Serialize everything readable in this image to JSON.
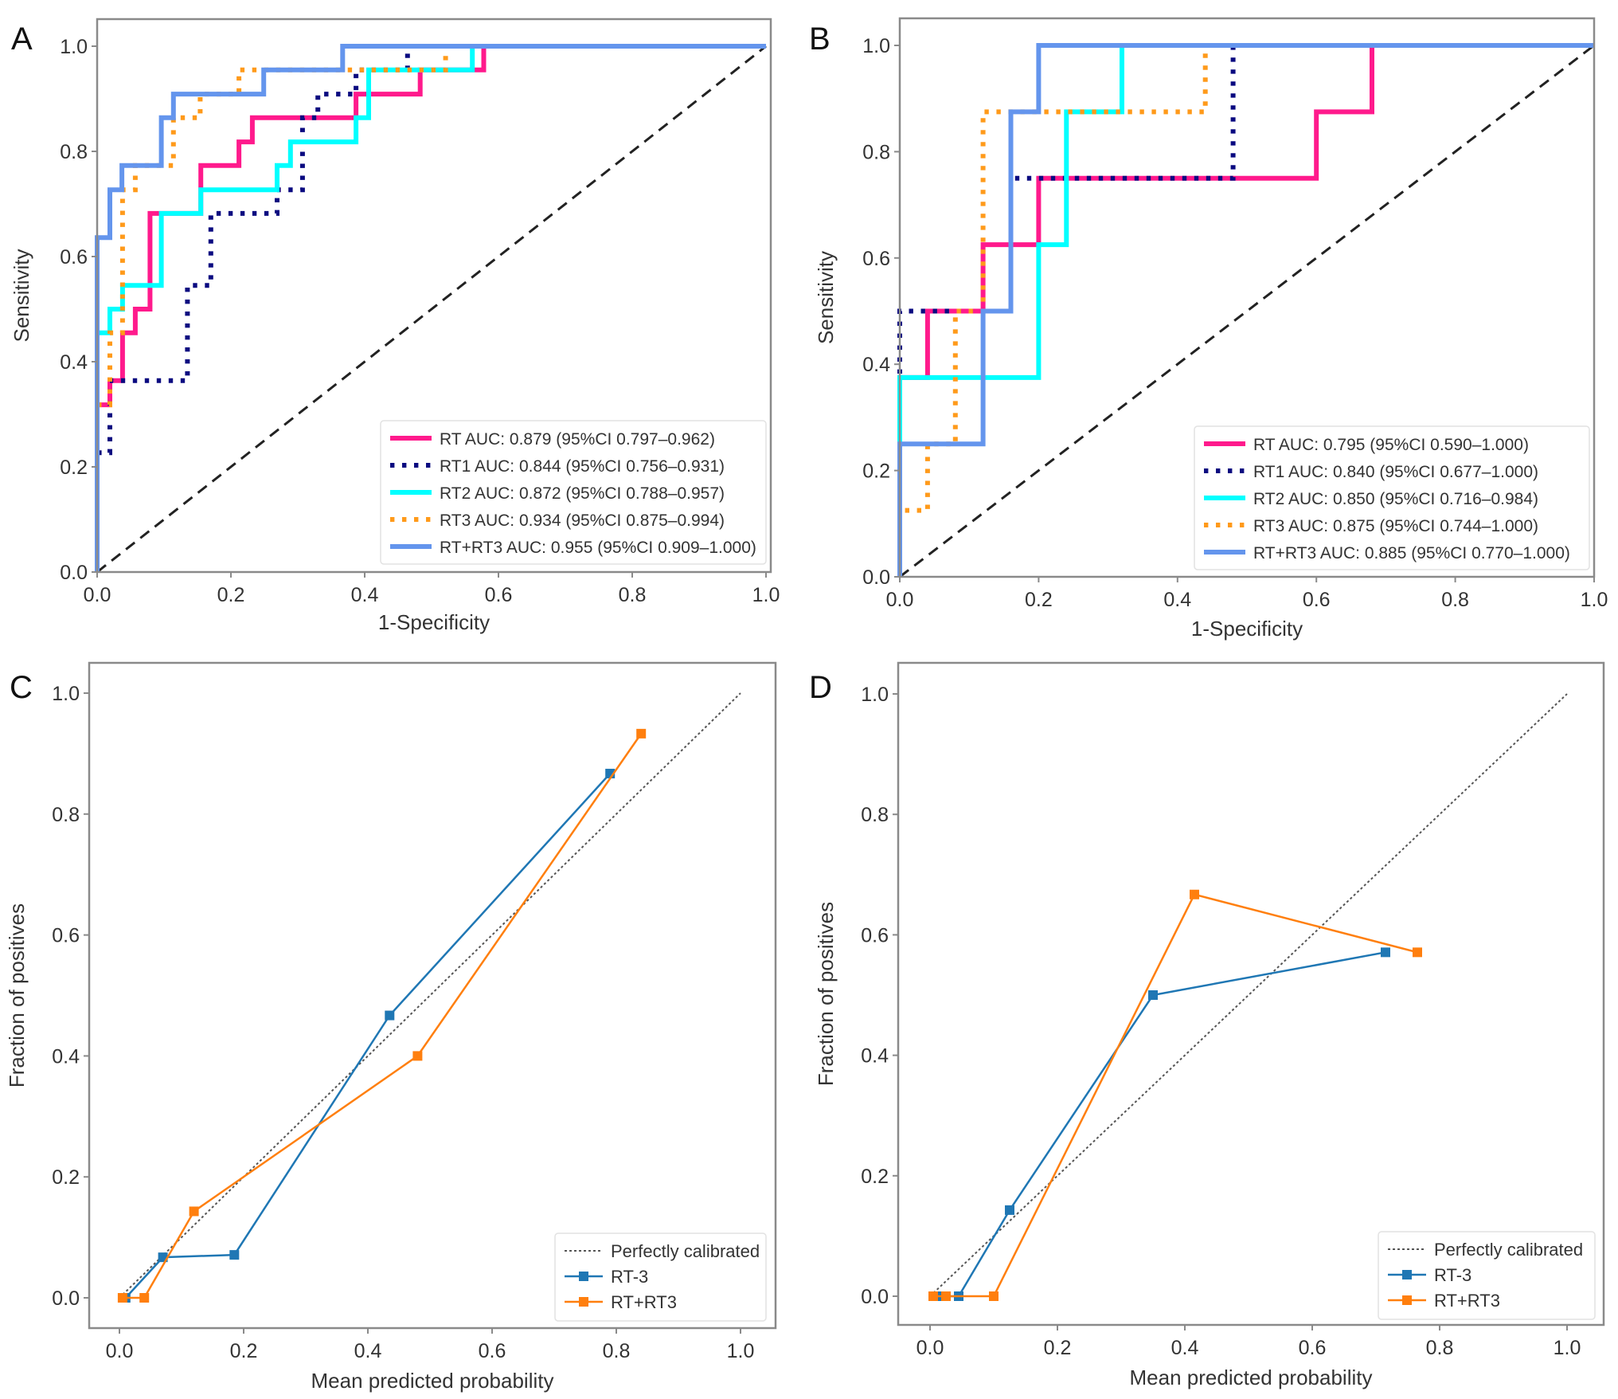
{
  "figure": {
    "panels": [
      "A",
      "B",
      "C",
      "D"
    ]
  },
  "chart_data": [
    {
      "panel": "A",
      "type": "line",
      "subtype": "roc-step",
      "title": "",
      "xlabel": "1-Specificity",
      "ylabel": "Sensitivity",
      "xlim": [
        0.0,
        1.0
      ],
      "ylim": [
        0.0,
        1.0
      ],
      "xticks": [
        "0.0",
        "0.2",
        "0.4",
        "0.6",
        "0.8",
        "1.0"
      ],
      "yticks": [
        "0.0",
        "0.2",
        "0.4",
        "0.6",
        "0.8",
        "1.0"
      ],
      "grid": false,
      "legend_position": "bottom-right",
      "reference_line": {
        "style": "dashed",
        "color": "#222222",
        "points": [
          [
            0,
            0
          ],
          [
            1,
            1
          ]
        ]
      },
      "series": [
        {
          "name": "RT",
          "legend": "RT AUC: 0.879 (95%CI 0.797–0.962)",
          "color": "#ff1a8c",
          "style": "solid",
          "points": [
            [
              0,
              0
            ],
            [
              0,
              0.318
            ],
            [
              0.019,
              0.318
            ],
            [
              0.019,
              0.364
            ],
            [
              0.038,
              0.364
            ],
            [
              0.038,
              0.455
            ],
            [
              0.057,
              0.455
            ],
            [
              0.057,
              0.5
            ],
            [
              0.079,
              0.5
            ],
            [
              0.079,
              0.682
            ],
            [
              0.096,
              0.682
            ],
            [
              0.155,
              0.682
            ],
            [
              0.155,
              0.773
            ],
            [
              0.212,
              0.773
            ],
            [
              0.212,
              0.818
            ],
            [
              0.232,
              0.818
            ],
            [
              0.232,
              0.864
            ],
            [
              0.387,
              0.864
            ],
            [
              0.387,
              0.909
            ],
            [
              0.483,
              0.909
            ],
            [
              0.483,
              0.955
            ],
            [
              0.578,
              0.955
            ],
            [
              0.578,
              1.0
            ],
            [
              1.0,
              1.0
            ]
          ]
        },
        {
          "name": "RT1",
          "legend": "RT1 AUC: 0.844 (95%CI 0.756–0.931)",
          "color": "#0a0a80",
          "style": "dotted",
          "points": [
            [
              0,
              0
            ],
            [
              0,
              0.227
            ],
            [
              0.019,
              0.227
            ],
            [
              0.019,
              0.364
            ],
            [
              0.135,
              0.364
            ],
            [
              0.135,
              0.545
            ],
            [
              0.17,
              0.545
            ],
            [
              0.17,
              0.682
            ],
            [
              0.269,
              0.682
            ],
            [
              0.269,
              0.727
            ],
            [
              0.307,
              0.727
            ],
            [
              0.307,
              0.864
            ],
            [
              0.33,
              0.864
            ],
            [
              0.33,
              0.909
            ],
            [
              0.387,
              0.909
            ],
            [
              0.387,
              0.955
            ],
            [
              0.464,
              0.955
            ],
            [
              0.464,
              1.0
            ],
            [
              1.0,
              1.0
            ]
          ]
        },
        {
          "name": "RT2",
          "legend": "RT2 AUC: 0.872 (95%CI 0.788–0.957)",
          "color": "#00ffff",
          "style": "solid",
          "points": [
            [
              0,
              0
            ],
            [
              0,
              0.455
            ],
            [
              0.019,
              0.455
            ],
            [
              0.019,
              0.5
            ],
            [
              0.038,
              0.5
            ],
            [
              0.038,
              0.545
            ],
            [
              0.096,
              0.545
            ],
            [
              0.096,
              0.682
            ],
            [
              0.155,
              0.682
            ],
            [
              0.155,
              0.727
            ],
            [
              0.269,
              0.727
            ],
            [
              0.269,
              0.773
            ],
            [
              0.289,
              0.773
            ],
            [
              0.289,
              0.818
            ],
            [
              0.387,
              0.818
            ],
            [
              0.387,
              0.864
            ],
            [
              0.406,
              0.864
            ],
            [
              0.406,
              0.955
            ],
            [
              0.561,
              0.955
            ],
            [
              0.561,
              1.0
            ],
            [
              1.0,
              1.0
            ]
          ]
        },
        {
          "name": "RT3",
          "legend": "RT3 AUC: 0.934 (95%CI 0.875–0.994)",
          "color": "#ff9a1a",
          "style": "dotted",
          "points": [
            [
              0,
              0
            ],
            [
              0,
              0.318
            ],
            [
              0.019,
              0.318
            ],
            [
              0.019,
              0.455
            ],
            [
              0.038,
              0.455
            ],
            [
              0.038,
              0.727
            ],
            [
              0.057,
              0.727
            ],
            [
              0.057,
              0.773
            ],
            [
              0.114,
              0.773
            ],
            [
              0.114,
              0.864
            ],
            [
              0.154,
              0.864
            ],
            [
              0.154,
              0.909
            ],
            [
              0.212,
              0.909
            ],
            [
              0.212,
              0.955
            ],
            [
              0.521,
              0.955
            ],
            [
              0.521,
              1.0
            ],
            [
              1.0,
              1.0
            ]
          ]
        },
        {
          "name": "RT+RT3",
          "legend": "RT+RT3 AUC: 0.955 (95%CI 0.909–1.000)",
          "color": "#6495ed",
          "style": "solid",
          "points": [
            [
              0,
              0
            ],
            [
              0,
              0.636
            ],
            [
              0.019,
              0.636
            ],
            [
              0.019,
              0.727
            ],
            [
              0.037,
              0.727
            ],
            [
              0.037,
              0.773
            ],
            [
              0.096,
              0.773
            ],
            [
              0.096,
              0.864
            ],
            [
              0.114,
              0.864
            ],
            [
              0.114,
              0.909
            ],
            [
              0.249,
              0.909
            ],
            [
              0.249,
              0.955
            ],
            [
              0.367,
              0.955
            ],
            [
              0.367,
              1.0
            ],
            [
              1.0,
              1.0
            ]
          ]
        }
      ]
    },
    {
      "panel": "B",
      "type": "line",
      "subtype": "roc-step",
      "title": "",
      "xlabel": "1-Specificity",
      "ylabel": "Sensitivity",
      "xlim": [
        0.0,
        1.0
      ],
      "ylim": [
        0.0,
        1.0
      ],
      "xticks": [
        "0.0",
        "0.2",
        "0.4",
        "0.6",
        "0.8",
        "1.0"
      ],
      "yticks": [
        "0.0",
        "0.2",
        "0.4",
        "0.6",
        "0.8",
        "1.0"
      ],
      "grid": false,
      "legend_position": "bottom-right",
      "reference_line": {
        "style": "dashed",
        "color": "#222222",
        "points": [
          [
            0,
            0
          ],
          [
            1,
            1
          ]
        ]
      },
      "series": [
        {
          "name": "RT",
          "legend": "RT AUC: 0.795 (95%CI 0.590–1.000)",
          "color": "#ff1a8c",
          "style": "solid",
          "points": [
            [
              0,
              0
            ],
            [
              0,
              0.375
            ],
            [
              0.04,
              0.375
            ],
            [
              0.04,
              0.5
            ],
            [
              0.12,
              0.5
            ],
            [
              0.12,
              0.625
            ],
            [
              0.2,
              0.625
            ],
            [
              0.2,
              0.75
            ],
            [
              0.6,
              0.75
            ],
            [
              0.6,
              0.875
            ],
            [
              0.68,
              0.875
            ],
            [
              0.68,
              1.0
            ],
            [
              1.0,
              1.0
            ]
          ]
        },
        {
          "name": "RT1",
          "legend": "RT1 AUC: 0.840 (95%CI 0.677–1.000)",
          "color": "#0a0a80",
          "style": "dotted",
          "points": [
            [
              0,
              0
            ],
            [
              0,
              0.5
            ],
            [
              0.16,
              0.5
            ],
            [
              0.16,
              0.75
            ],
            [
              0.48,
              0.75
            ],
            [
              0.48,
              1.0
            ],
            [
              1.0,
              1.0
            ]
          ]
        },
        {
          "name": "RT2",
          "legend": "RT2 AUC: 0.850 (95%CI 0.716–0.984)",
          "color": "#00ffff",
          "style": "solid",
          "points": [
            [
              0,
              0
            ],
            [
              0,
              0.375
            ],
            [
              0.2,
              0.375
            ],
            [
              0.2,
              0.625
            ],
            [
              0.24,
              0.625
            ],
            [
              0.24,
              0.875
            ],
            [
              0.32,
              0.875
            ],
            [
              0.32,
              1.0
            ],
            [
              1.0,
              1.0
            ]
          ]
        },
        {
          "name": "RT3",
          "legend": "RT3 AUC: 0.875 (95%CI 0.744–1.000)",
          "color": "#ff9a1a",
          "style": "dotted",
          "points": [
            [
              0,
              0
            ],
            [
              0,
              0.125
            ],
            [
              0.04,
              0.125
            ],
            [
              0.04,
              0.25
            ],
            [
              0.08,
              0.25
            ],
            [
              0.08,
              0.5
            ],
            [
              0.12,
              0.5
            ],
            [
              0.12,
              0.875
            ],
            [
              0.44,
              0.875
            ],
            [
              0.44,
              1.0
            ],
            [
              1.0,
              1.0
            ]
          ]
        },
        {
          "name": "RT+RT3",
          "legend": "RT+RT3 AUC: 0.885 (95%CI 0.770–1.000)",
          "color": "#6495ed",
          "style": "solid",
          "points": [
            [
              0,
              0
            ],
            [
              0,
              0.25
            ],
            [
              0.12,
              0.25
            ],
            [
              0.12,
              0.5
            ],
            [
              0.16,
              0.5
            ],
            [
              0.16,
              0.875
            ],
            [
              0.2,
              0.875
            ],
            [
              0.2,
              1.0
            ],
            [
              1.0,
              1.0
            ]
          ]
        }
      ]
    },
    {
      "panel": "C",
      "type": "line",
      "subtype": "calibration",
      "title": "",
      "xlabel": "Mean predicted probability",
      "ylabel": "Fraction of positives",
      "xlim": [
        -0.05,
        1.05
      ],
      "ylim": [
        -0.05,
        1.05
      ],
      "xticks": [
        "0.0",
        "0.2",
        "0.4",
        "0.6",
        "0.8",
        "1.0"
      ],
      "yticks": [
        "0.0",
        "0.2",
        "0.4",
        "0.6",
        "0.8",
        "1.0"
      ],
      "grid": false,
      "legend_position": "bottom-right",
      "reference_line": {
        "name": "Perfectly calibrated",
        "style": "dotted",
        "color": "#555555",
        "points": [
          [
            0,
            0
          ],
          [
            1,
            1
          ]
        ]
      },
      "series": [
        {
          "name": "RT-3",
          "color": "#1f77b4",
          "style": "solid",
          "marker": "square",
          "points": [
            [
              0.01,
              0.0
            ],
            [
              0.07,
              0.067
            ],
            [
              0.185,
              0.071
            ],
            [
              0.435,
              0.467
            ],
            [
              0.79,
              0.867
            ]
          ]
        },
        {
          "name": "RT+RT3",
          "color": "#ff7f0e",
          "style": "solid",
          "marker": "square",
          "points": [
            [
              0.005,
              0.0
            ],
            [
              0.04,
              0.0
            ],
            [
              0.12,
              0.143
            ],
            [
              0.48,
              0.4
            ],
            [
              0.84,
              0.933
            ]
          ]
        }
      ]
    },
    {
      "panel": "D",
      "type": "line",
      "subtype": "calibration",
      "title": "",
      "xlabel": "Mean predicted probability",
      "ylabel": "Fraction of positives",
      "xlim": [
        -0.05,
        1.05
      ],
      "ylim": [
        -0.05,
        1.05
      ],
      "xticks": [
        "0.0",
        "0.2",
        "0.4",
        "0.6",
        "0.8",
        "1.0"
      ],
      "yticks": [
        "0.0",
        "0.2",
        "0.4",
        "0.6",
        "0.8",
        "1.0"
      ],
      "grid": false,
      "legend_position": "bottom-right",
      "reference_line": {
        "name": "Perfectly calibrated",
        "style": "dotted",
        "color": "#555555",
        "points": [
          [
            0,
            0
          ],
          [
            1,
            1
          ]
        ]
      },
      "series": [
        {
          "name": "RT-3",
          "color": "#1f77b4",
          "style": "solid",
          "marker": "square",
          "points": [
            [
              0.01,
              0.0
            ],
            [
              0.045,
              0.0
            ],
            [
              0.125,
              0.143
            ],
            [
              0.35,
              0.5
            ],
            [
              0.715,
              0.571
            ]
          ]
        },
        {
          "name": "RT+RT3",
          "color": "#ff7f0e",
          "style": "solid",
          "marker": "square",
          "points": [
            [
              0.005,
              0.0
            ],
            [
              0.025,
              0.0
            ],
            [
              0.1,
              0.0
            ],
            [
              0.415,
              0.667
            ],
            [
              0.765,
              0.571
            ]
          ]
        }
      ]
    }
  ]
}
